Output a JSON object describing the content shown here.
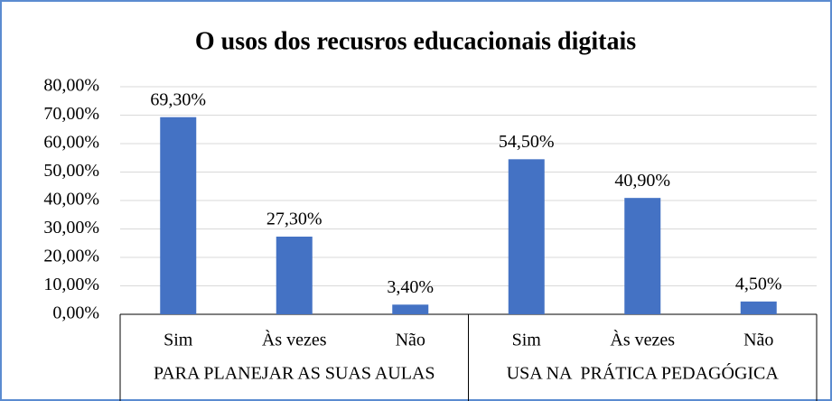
{
  "chart_data": {
    "type": "bar",
    "title": "O usos dos recusros educacionais digitais",
    "color": "#4472c4",
    "groups": [
      {
        "name": "PARA PLANEJAR AS SUAS AULAS",
        "categories": [
          "Sim",
          "Às vezes",
          "Não"
        ],
        "values": [
          69.3,
          27.3,
          3.4
        ],
        "value_labels": [
          "69,30%",
          "27,30%",
          "3,40%"
        ]
      },
      {
        "name": "USA NA  PRÁTICA PEDAGÓGICA",
        "categories": [
          "Sim",
          "Às vezes",
          "Não"
        ],
        "values": [
          54.5,
          40.9,
          4.5
        ],
        "value_labels": [
          "54,50%",
          "40,90%",
          "4,50%"
        ]
      }
    ],
    "ylim": [
      0,
      80
    ],
    "yticks": [
      {
        "value": 0,
        "label": "0,00%"
      },
      {
        "value": 10,
        "label": "10,00%"
      },
      {
        "value": 20,
        "label": "20,00%"
      },
      {
        "value": 30,
        "label": "30,00%"
      },
      {
        "value": 40,
        "label": "40,00%"
      },
      {
        "value": 50,
        "label": "50,00%"
      },
      {
        "value": 60,
        "label": "60,00%"
      },
      {
        "value": 70,
        "label": "70,00%"
      },
      {
        "value": 80,
        "label": "80,00%"
      }
    ],
    "grid": true
  }
}
